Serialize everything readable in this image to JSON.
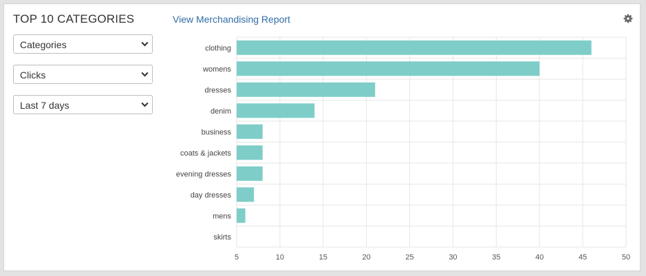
{
  "widget": {
    "title": "TOP 10 CATEGORIES",
    "report_link": "View Merchandising Report",
    "settings_icon": "gear-icon"
  },
  "filters": {
    "dimension": {
      "selected": "Categories",
      "icon": "chevron-down-icon"
    },
    "metric": {
      "selected": "Clicks",
      "icon": "chevron-down-icon"
    },
    "range": {
      "selected": "Last 7 days",
      "icon": "chevron-down-icon"
    }
  },
  "colors": {
    "bar": "#7ecdc8",
    "grid": "#e6e6e6",
    "link": "#2f6ea5"
  },
  "chart_data": {
    "type": "bar",
    "orientation": "horizontal",
    "title": "",
    "xlabel": "",
    "ylabel": "",
    "categories": [
      "clothing",
      "womens",
      "dresses",
      "denim",
      "business",
      "coats & jackets",
      "evening dresses",
      "day dresses",
      "mens",
      "skirts"
    ],
    "values": [
      46,
      40,
      21,
      14,
      8,
      8,
      8,
      7,
      6,
      5
    ],
    "xlim": [
      5,
      50
    ],
    "xticks": [
      5,
      10,
      15,
      20,
      25,
      30,
      35,
      40,
      45,
      50
    ],
    "grid": true,
    "legend": "none"
  }
}
